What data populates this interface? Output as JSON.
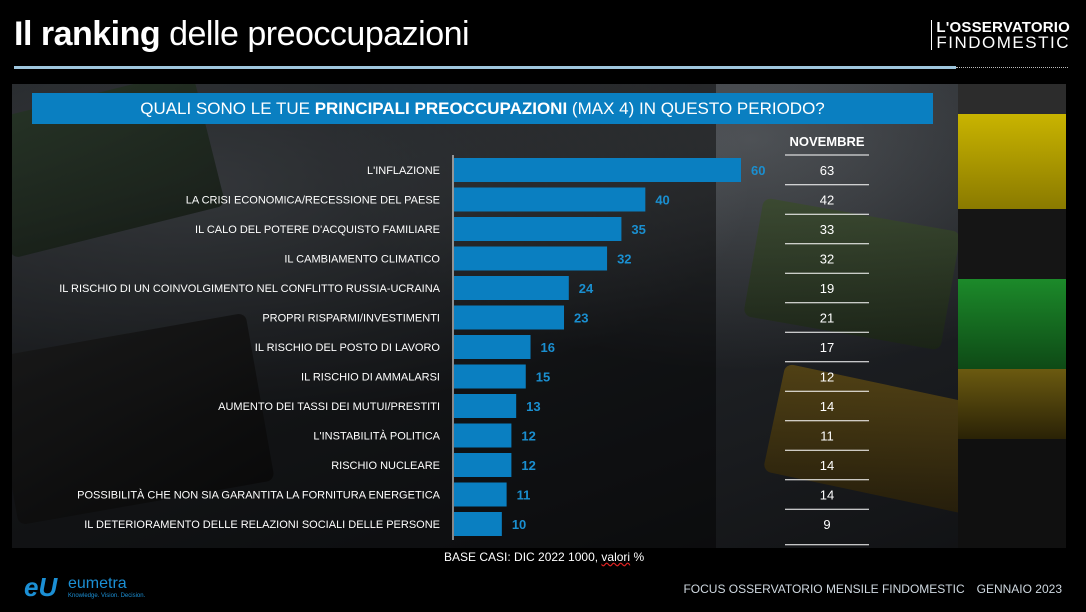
{
  "header": {
    "title_bold": "Il ranking",
    "title_rest": " delle preoccupazioni",
    "brand_line1": "L'OSSERVATORIO",
    "brand_line2": "FINDOMESTIC"
  },
  "question": {
    "pre": "QUALI SONO LE TUE ",
    "bold": "PRINCIPALI PREOCCUPAZIONI",
    "post": " (MAX 4) IN QUESTO PERIODO?"
  },
  "colors": {
    "bar": "#0a7fc1",
    "value_label": "#1a8fd0",
    "accent_line": "#9ec6dd"
  },
  "chart_data": {
    "type": "bar",
    "orientation": "horizontal",
    "categories": [
      "L'INFLAZIONE",
      "LA CRISI ECONOMICA/RECESSIONE DEL PAESE",
      "IL CALO DEL POTERE D'ACQUISTO FAMILIARE",
      "IL CAMBIAMENTO CLIMATICO",
      "IL RISCHIO DI UN COINVOLGIMENTO NEL CONFLITTO RUSSIA-UCRAINA",
      "PROPRI RISPARMI/INVESTIMENTI",
      "IL RISCHIO DEL POSTO DI LAVORO",
      "IL RISCHIO DI AMMALARSI",
      "AUMENTO DEI TASSI DEI MUTUI/PRESTITI",
      "L'INSTABILITÀ POLITICA",
      "RISCHIO NUCLEARE",
      "POSSIBILITÀ CHE NON SIA GARANTITA LA FORNITURA ENERGETICA",
      "IL DETERIORAMENTO DELLE RELAZIONI SOCIALI DELLE PERSONE"
    ],
    "values": [
      60,
      40,
      35,
      32,
      24,
      23,
      16,
      15,
      13,
      12,
      12,
      11,
      10
    ],
    "comparison": {
      "header": "NOVEMBRE",
      "values": [
        63,
        42,
        33,
        32,
        19,
        21,
        17,
        12,
        14,
        11,
        14,
        14,
        9
      ]
    },
    "xlim": [
      0,
      60
    ],
    "grid": false,
    "legend": "none"
  },
  "footnote": {
    "pre": "BASE CASI: DIC 2022 1000, ",
    "underlined": "valori",
    "post": " %"
  },
  "footer": {
    "logo_name": "eumetra",
    "logo_tagline": "Knowledge. Vision. Decision.",
    "focus_text": "FOCUS OSSERVATORIO MENSILE FINDOMESTIC",
    "date_text": "GENNAIO 2023"
  }
}
